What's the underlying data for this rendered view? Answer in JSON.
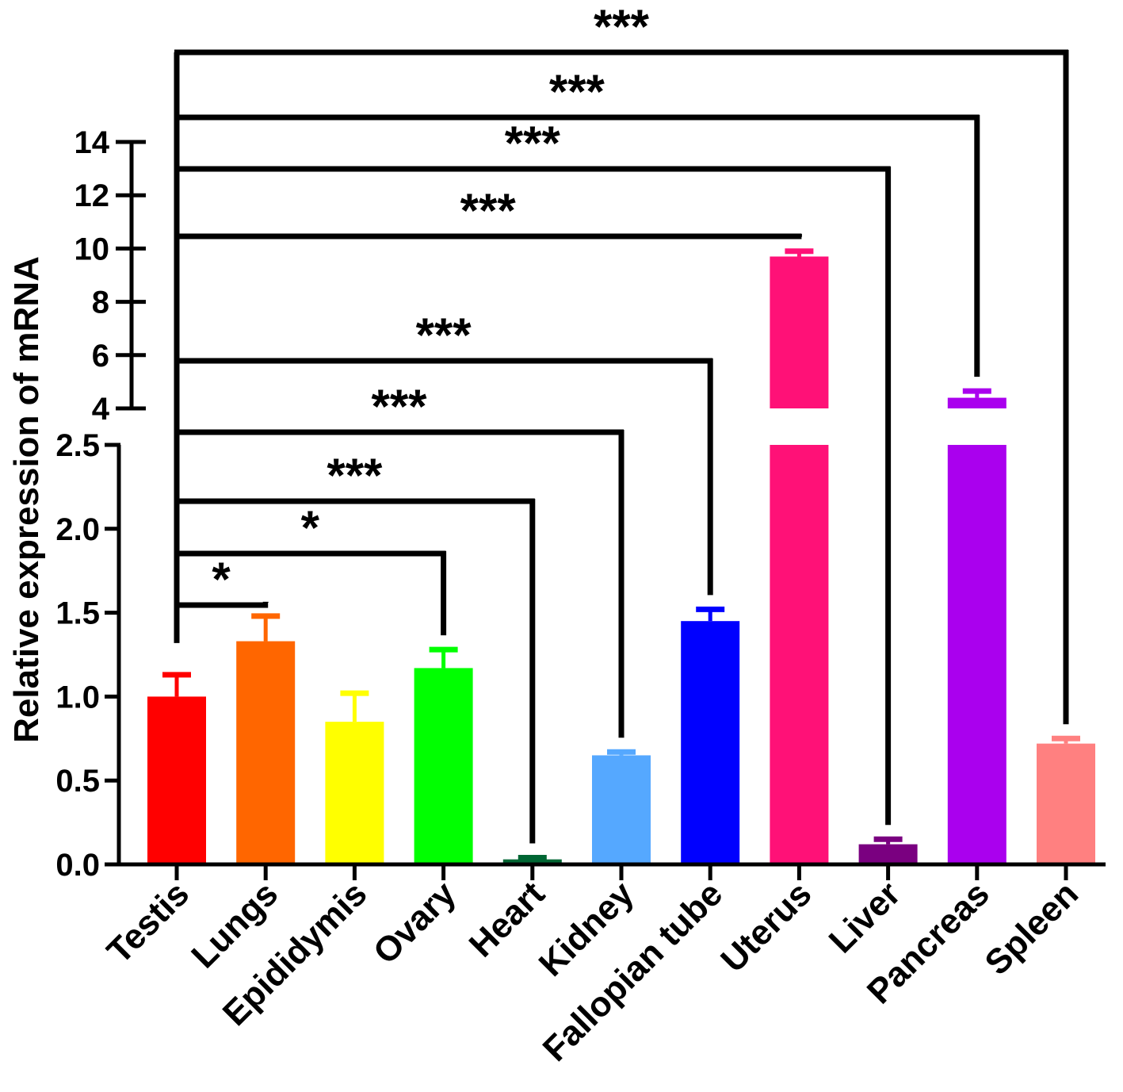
{
  "chart_data": {
    "type": "bar",
    "ylabel": "Relative expression of mRNA",
    "xlabel": "",
    "title": "",
    "y_axis": {
      "broken": true,
      "lower_segment": {
        "range": [
          0,
          2.5
        ],
        "ticks": [
          "0.0",
          "0.5",
          "1.0",
          "1.5",
          "2.0",
          "2.5"
        ]
      },
      "upper_segment": {
        "range": [
          4,
          14
        ],
        "ticks": [
          "4",
          "6",
          "8",
          "10",
          "12",
          "14"
        ]
      }
    },
    "categories": [
      "Testis",
      "Lungs",
      "Epididymis",
      "Ovary",
      "Heart",
      "Kidney",
      "Fallopian tube",
      "Uterus",
      "Liver",
      "Pancreas",
      "Spleen"
    ],
    "values": [
      1.0,
      1.33,
      0.85,
      1.17,
      0.03,
      0.65,
      1.45,
      9.7,
      0.12,
      4.4,
      0.72
    ],
    "error": [
      0.13,
      0.15,
      0.17,
      0.11,
      0.01,
      0.02,
      0.07,
      0.2,
      0.03,
      0.25,
      0.03
    ],
    "colors": [
      "#ff0000",
      "#ff6600",
      "#ffff00",
      "#00ff00",
      "#006633",
      "#55a8ff",
      "#0000ff",
      "#ff1177",
      "#7a0080",
      "#aa00ee",
      "#ff8080"
    ],
    "comparisons": [
      {
        "reference": "Testis",
        "target": "Lungs",
        "label": "*"
      },
      {
        "reference": "Testis",
        "target": "Ovary",
        "label": "*"
      },
      {
        "reference": "Testis",
        "target": "Heart",
        "label": "***"
      },
      {
        "reference": "Testis",
        "target": "Kidney",
        "label": "***"
      },
      {
        "reference": "Testis",
        "target": "Fallopian tube",
        "label": "***"
      },
      {
        "reference": "Testis",
        "target": "Uterus",
        "label": "***"
      },
      {
        "reference": "Testis",
        "target": "Liver",
        "label": "***"
      },
      {
        "reference": "Testis",
        "target": "Pancreas",
        "label": "***"
      },
      {
        "reference": "Testis",
        "target": "Spleen",
        "label": "***"
      }
    ]
  }
}
